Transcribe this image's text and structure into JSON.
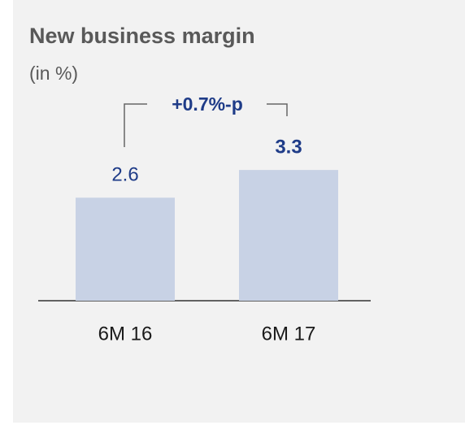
{
  "chart_data": {
    "type": "bar",
    "title": "New business margin",
    "subtitle": "(in %)",
    "annotation": "+0.7%-p",
    "categories": [
      "6M 16",
      "6M 17"
    ],
    "values": [
      2.6,
      3.3
    ],
    "color": "#c8d2e5",
    "ylim": [
      0,
      4
    ]
  }
}
